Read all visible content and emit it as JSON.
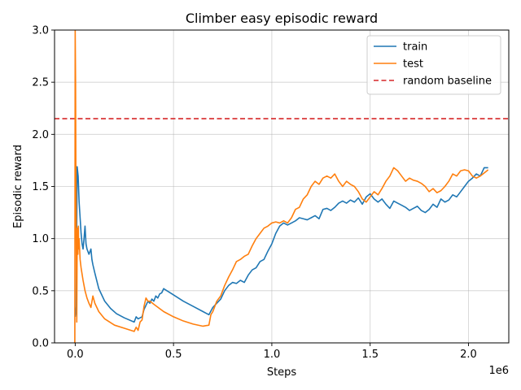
{
  "chart_data": {
    "type": "line",
    "title": "Climber easy episodic reward",
    "xlabel": "Steps",
    "ylabel": "Episodic reward",
    "x_offset_label": "1e6",
    "xlim": [
      -0.105,
      2.205
    ],
    "ylim": [
      0.0,
      3.0
    ],
    "x_ticks": [
      0.0,
      0.5,
      1.0,
      1.5,
      2.0
    ],
    "x_tick_labels": [
      "0.0",
      "0.5",
      "1.0",
      "1.5",
      "2.0"
    ],
    "y_ticks": [
      0.0,
      0.5,
      1.0,
      1.5,
      2.0,
      2.5,
      3.0
    ],
    "y_tick_labels": [
      "0.0",
      "0.5",
      "1.0",
      "1.5",
      "2.0",
      "2.5",
      "3.0"
    ],
    "grid": true,
    "legend_position": "top-right",
    "baseline": {
      "name": "random baseline",
      "value": 2.15,
      "color": "#d62728",
      "style": "dashed"
    },
    "series": [
      {
        "name": "train",
        "color": "#1f77b4",
        "x": [
          0.0,
          0.005,
          0.01,
          0.015,
          0.02,
          0.025,
          0.03,
          0.035,
          0.04,
          0.045,
          0.05,
          0.055,
          0.06,
          0.07,
          0.08,
          0.085,
          0.09,
          0.1,
          0.12,
          0.15,
          0.18,
          0.21,
          0.25,
          0.3,
          0.31,
          0.32,
          0.33,
          0.34,
          0.35,
          0.36,
          0.37,
          0.38,
          0.39,
          0.4,
          0.41,
          0.42,
          0.43,
          0.44,
          0.45,
          0.5,
          0.55,
          0.6,
          0.65,
          0.68,
          0.7,
          0.72,
          0.74,
          0.76,
          0.78,
          0.8,
          0.82,
          0.84,
          0.86,
          0.88,
          0.9,
          0.92,
          0.94,
          0.96,
          0.98,
          1.0,
          1.02,
          1.04,
          1.06,
          1.08,
          1.1,
          1.12,
          1.14,
          1.16,
          1.18,
          1.2,
          1.22,
          1.24,
          1.26,
          1.28,
          1.3,
          1.32,
          1.34,
          1.36,
          1.38,
          1.4,
          1.42,
          1.44,
          1.46,
          1.48,
          1.5,
          1.52,
          1.54,
          1.56,
          1.58,
          1.6,
          1.62,
          1.64,
          1.66,
          1.68,
          1.7,
          1.72,
          1.74,
          1.76,
          1.78,
          1.8,
          1.82,
          1.84,
          1.86,
          1.88,
          1.9,
          1.92,
          1.94,
          1.96,
          1.98,
          2.0,
          2.02,
          2.04,
          2.06,
          2.08,
          2.1
        ],
        "values": [
          0.25,
          0.35,
          1.69,
          1.6,
          1.35,
          1.2,
          1.05,
          0.95,
          0.9,
          1.0,
          1.12,
          0.95,
          0.9,
          0.85,
          0.9,
          0.8,
          0.75,
          0.67,
          0.52,
          0.4,
          0.33,
          0.28,
          0.24,
          0.2,
          0.25,
          0.23,
          0.24,
          0.25,
          0.32,
          0.36,
          0.4,
          0.38,
          0.42,
          0.4,
          0.45,
          0.43,
          0.47,
          0.48,
          0.52,
          0.46,
          0.4,
          0.35,
          0.3,
          0.27,
          0.34,
          0.38,
          0.42,
          0.5,
          0.55,
          0.58,
          0.57,
          0.6,
          0.58,
          0.65,
          0.7,
          0.72,
          0.78,
          0.8,
          0.88,
          0.95,
          1.05,
          1.12,
          1.15,
          1.13,
          1.15,
          1.17,
          1.2,
          1.19,
          1.18,
          1.2,
          1.22,
          1.19,
          1.28,
          1.29,
          1.27,
          1.3,
          1.34,
          1.36,
          1.34,
          1.37,
          1.35,
          1.39,
          1.33,
          1.4,
          1.43,
          1.38,
          1.35,
          1.38,
          1.33,
          1.29,
          1.36,
          1.34,
          1.32,
          1.3,
          1.27,
          1.29,
          1.31,
          1.27,
          1.25,
          1.28,
          1.33,
          1.3,
          1.38,
          1.35,
          1.37,
          1.42,
          1.4,
          1.45,
          1.5,
          1.55,
          1.58,
          1.62,
          1.6,
          1.68,
          1.68
        ]
      },
      {
        "name": "test",
        "color": "#ff7f0e",
        "x": [
          -0.002,
          0.0,
          0.002,
          0.004,
          0.006,
          0.008,
          0.01,
          0.012,
          0.014,
          0.016,
          0.018,
          0.02,
          0.025,
          0.03,
          0.04,
          0.05,
          0.06,
          0.07,
          0.08,
          0.09,
          0.1,
          0.12,
          0.15,
          0.2,
          0.25,
          0.3,
          0.31,
          0.32,
          0.33,
          0.34,
          0.35,
          0.36,
          0.37,
          0.38,
          0.4,
          0.45,
          0.5,
          0.55,
          0.6,
          0.65,
          0.68,
          0.69,
          0.7,
          0.72,
          0.74,
          0.76,
          0.78,
          0.8,
          0.82,
          0.84,
          0.86,
          0.88,
          0.9,
          0.92,
          0.94,
          0.96,
          0.98,
          1.0,
          1.02,
          1.04,
          1.06,
          1.08,
          1.1,
          1.12,
          1.14,
          1.16,
          1.18,
          1.2,
          1.22,
          1.24,
          1.26,
          1.28,
          1.3,
          1.32,
          1.34,
          1.36,
          1.38,
          1.4,
          1.42,
          1.44,
          1.46,
          1.48,
          1.5,
          1.52,
          1.54,
          1.56,
          1.58,
          1.6,
          1.62,
          1.64,
          1.66,
          1.68,
          1.7,
          1.72,
          1.74,
          1.76,
          1.78,
          1.8,
          1.82,
          1.84,
          1.86,
          1.88,
          1.9,
          1.92,
          1.94,
          1.96,
          1.98,
          2.0,
          2.02,
          2.04,
          2.06,
          2.08,
          2.1
        ],
        "values": [
          0.0,
          3.0,
          2.5,
          1.4,
          0.8,
          0.2,
          0.95,
          1.1,
          0.85,
          1.12,
          0.9,
          1.0,
          0.8,
          0.72,
          0.6,
          0.5,
          0.43,
          0.38,
          0.34,
          0.45,
          0.38,
          0.3,
          0.23,
          0.17,
          0.14,
          0.11,
          0.15,
          0.12,
          0.2,
          0.22,
          0.35,
          0.43,
          0.4,
          0.4,
          0.37,
          0.3,
          0.25,
          0.21,
          0.18,
          0.16,
          0.17,
          0.27,
          0.3,
          0.4,
          0.45,
          0.55,
          0.63,
          0.7,
          0.78,
          0.8,
          0.83,
          0.85,
          0.93,
          1.0,
          1.05,
          1.1,
          1.12,
          1.15,
          1.16,
          1.15,
          1.17,
          1.15,
          1.2,
          1.28,
          1.3,
          1.38,
          1.42,
          1.5,
          1.55,
          1.52,
          1.58,
          1.6,
          1.58,
          1.62,
          1.55,
          1.5,
          1.55,
          1.52,
          1.5,
          1.45,
          1.38,
          1.35,
          1.4,
          1.45,
          1.42,
          1.48,
          1.55,
          1.6,
          1.68,
          1.65,
          1.6,
          1.55,
          1.58,
          1.56,
          1.55,
          1.53,
          1.5,
          1.45,
          1.48,
          1.44,
          1.46,
          1.5,
          1.55,
          1.62,
          1.6,
          1.65,
          1.66,
          1.65,
          1.6,
          1.58,
          1.6,
          1.63,
          1.66
        ]
      }
    ]
  }
}
